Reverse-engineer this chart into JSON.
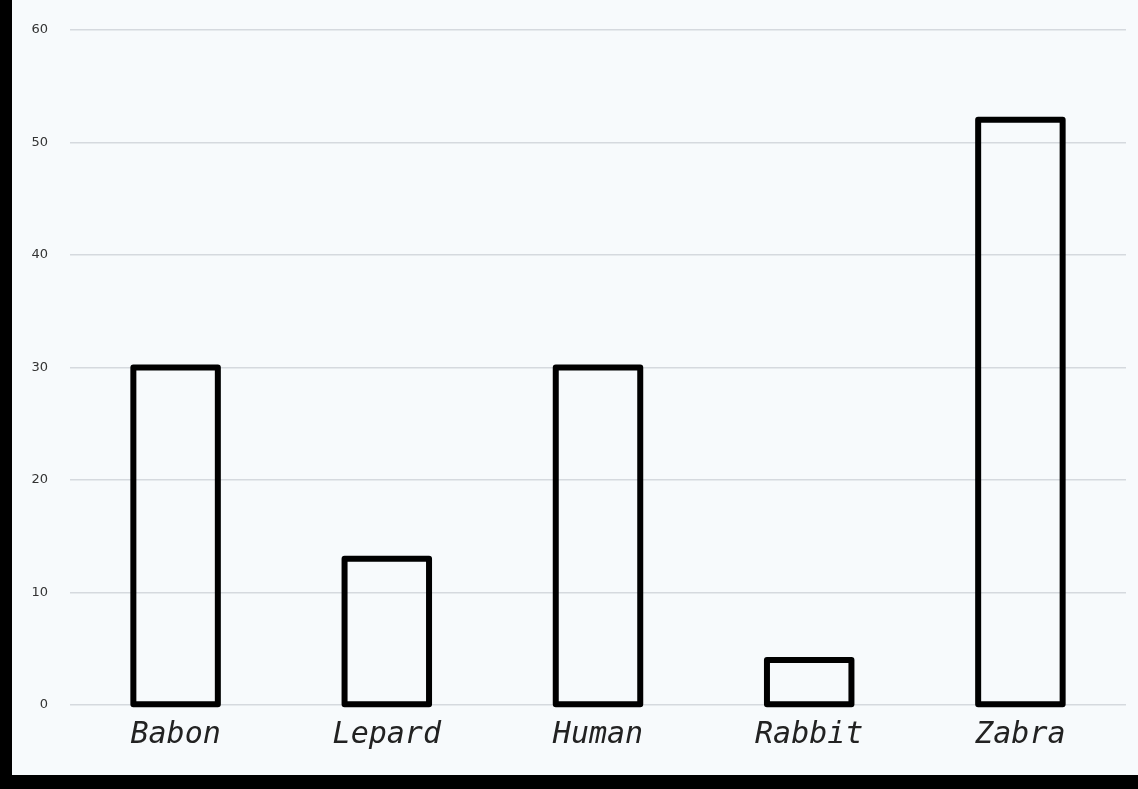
{
  "chart_data": {
    "type": "bar",
    "categories": [
      "Babon",
      "Lepard",
      "Human",
      "Rabbit",
      "Zabra"
    ],
    "values": [
      30,
      13,
      30,
      4,
      52
    ],
    "color": "#000000",
    "ylim": [
      0,
      60
    ],
    "yticks": [
      0,
      10,
      20,
      30,
      40,
      50,
      60
    ],
    "grid": "y",
    "legend": false
  }
}
